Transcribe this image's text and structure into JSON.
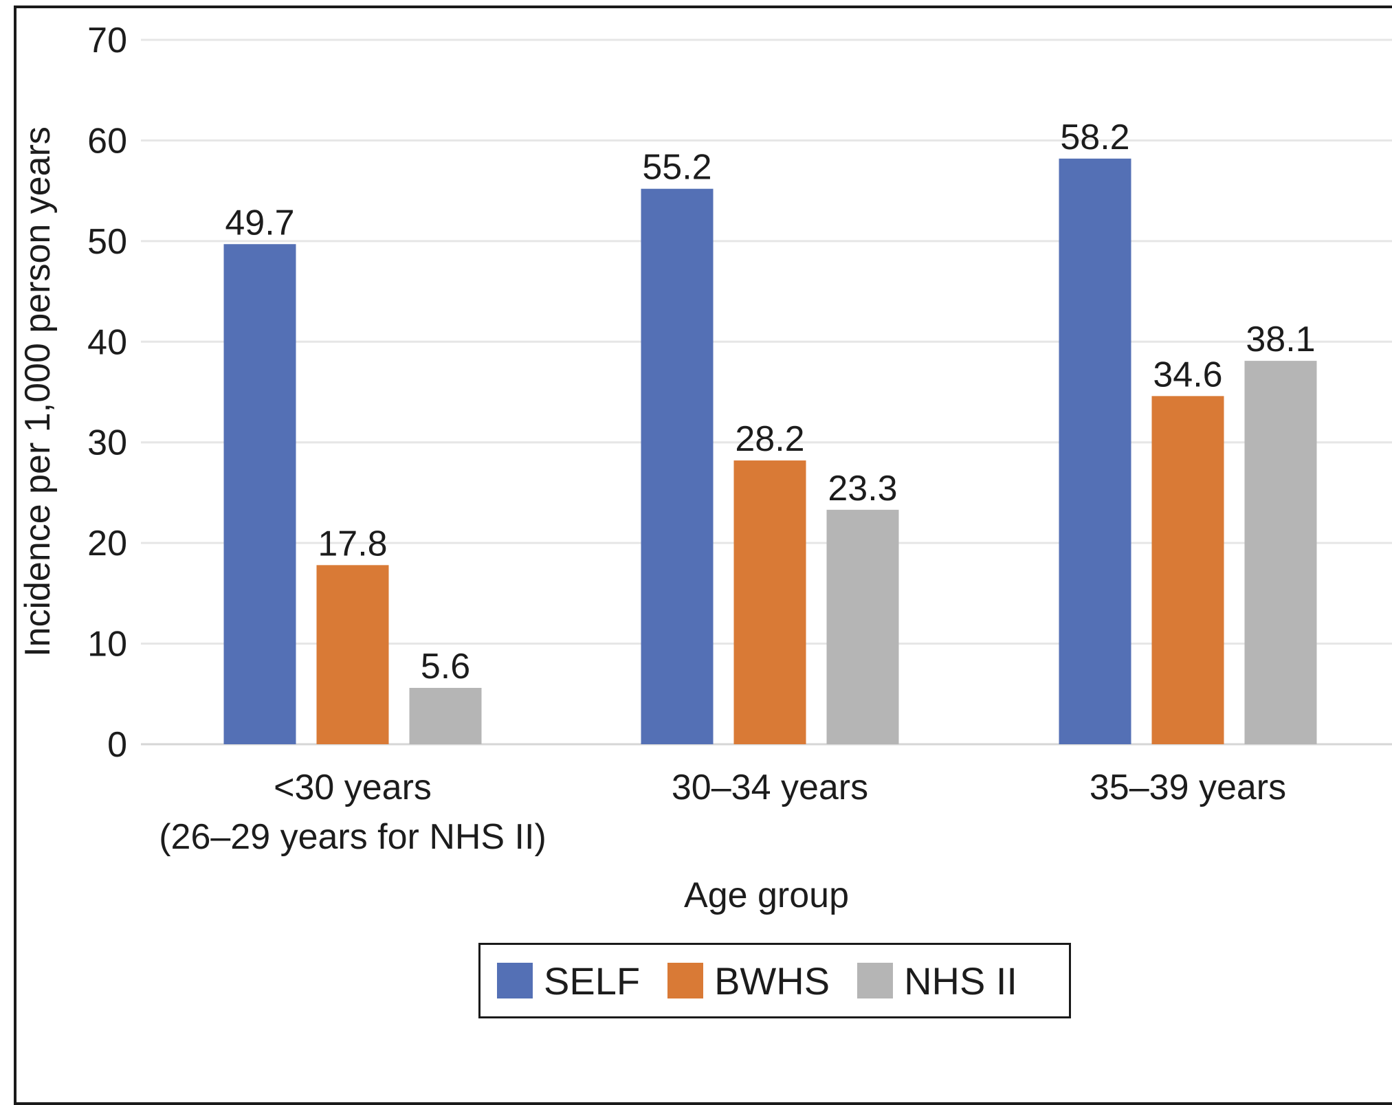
{
  "chart_data": {
    "type": "bar",
    "title": "",
    "ylabel": "Incidence per 1,000 person years",
    "xlabel": "Age group",
    "ylim": [
      0,
      70
    ],
    "yticks": [
      0,
      10,
      20,
      30,
      40,
      50,
      60,
      70
    ],
    "categories": [
      [
        "<30 years",
        "(26–29 years for NHS II)"
      ],
      [
        "30–34 years"
      ],
      [
        "35–39 years"
      ]
    ],
    "series": [
      {
        "name": "SELF",
        "color": "#5470b5",
        "values": [
          49.7,
          55.2,
          58.2
        ]
      },
      {
        "name": "BWHS",
        "color": "#d97a36",
        "values": [
          17.8,
          28.2,
          34.6
        ]
      },
      {
        "name": "NHS II",
        "color": "#b5b5b5",
        "values": [
          5.6,
          23.3,
          38.1
        ]
      }
    ],
    "data_labels": [
      [
        "49.7",
        "55.2",
        "58.2"
      ],
      [
        "17.8",
        "28.2",
        "34.6"
      ],
      [
        "5.6",
        "23.3",
        "38.1"
      ]
    ],
    "grid": true,
    "legend_position": "bottom"
  }
}
